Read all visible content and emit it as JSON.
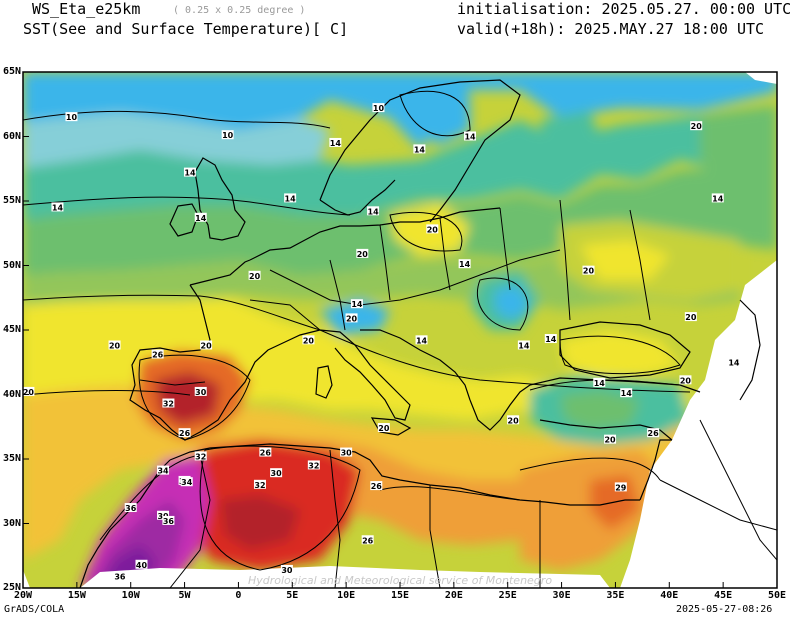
{
  "header": {
    "model": "WS_Eta_e25km",
    "resolution": "( 0.25 x 0.25 degree )",
    "variable": "SST(See and Surface Temperature)[ C]",
    "initialisation": "initialisation: 2025.05.27. 00:00 UTC",
    "valid": "valid(+18h): 2025.MAY.27 18:00 UTC"
  },
  "footer": {
    "software": "GrADS/COLA",
    "timestamp": "2025-05-27-08:26",
    "watermark": "Hydrological and Meteorological service of Montenegro"
  },
  "map": {
    "lat_ticks": [
      "65N",
      "60N",
      "55N",
      "50N",
      "45N",
      "40N",
      "35N",
      "30N",
      "25N"
    ],
    "lon_ticks": [
      "20W",
      "15W",
      "10W",
      "5W",
      "0",
      "5E",
      "10E",
      "15E",
      "20E",
      "25E",
      "30E",
      "35E",
      "40E",
      "45E",
      "50E"
    ],
    "contour_labels": [
      {
        "text": "10",
        "lon": -15.5,
        "lat": 61.5
      },
      {
        "text": "10",
        "lon": -1.0,
        "lat": 60.1
      },
      {
        "text": "10",
        "lon": 13.0,
        "lat": 62.2
      },
      {
        "text": "14",
        "lon": -16.8,
        "lat": 54.5
      },
      {
        "text": "14",
        "lon": -4.5,
        "lat": 57.2
      },
      {
        "text": "14",
        "lon": -3.5,
        "lat": 53.7
      },
      {
        "text": "14",
        "lon": 4.8,
        "lat": 55.2
      },
      {
        "text": "14",
        "lon": 9.0,
        "lat": 59.5
      },
      {
        "text": "14",
        "lon": 16.8,
        "lat": 59.0
      },
      {
        "text": "14",
        "lon": 21.5,
        "lat": 60.0
      },
      {
        "text": "14",
        "lon": 12.5,
        "lat": 54.2
      },
      {
        "text": "14",
        "lon": 21.0,
        "lat": 50.1
      },
      {
        "text": "14",
        "lon": 11.0,
        "lat": 47.0
      },
      {
        "text": "14",
        "lon": 17.0,
        "lat": 44.2
      },
      {
        "text": "14",
        "lon": 26.5,
        "lat": 43.8
      },
      {
        "text": "14",
        "lon": 29.0,
        "lat": 44.3
      },
      {
        "text": "14",
        "lon": 33.5,
        "lat": 40.9
      },
      {
        "text": "14",
        "lon": 36.0,
        "lat": 40.1
      },
      {
        "text": "14",
        "lon": 44.5,
        "lat": 55.2
      },
      {
        "text": "14",
        "lon": 46.0,
        "lat": 42.5
      },
      {
        "text": "20",
        "lon": 42.5,
        "lat": 60.8
      },
      {
        "text": "20",
        "lon": 18.0,
        "lat": 52.8
      },
      {
        "text": "20",
        "lon": 11.5,
        "lat": 50.9
      },
      {
        "text": "20",
        "lon": 32.5,
        "lat": 49.6
      },
      {
        "text": "20",
        "lon": 42.0,
        "lat": 46.0
      },
      {
        "text": "20",
        "lon": 41.5,
        "lat": 41.1
      },
      {
        "text": "20",
        "lon": 1.5,
        "lat": 49.2
      },
      {
        "text": "20",
        "lon": 10.5,
        "lat": 45.9
      },
      {
        "text": "20",
        "lon": 6.5,
        "lat": 44.2
      },
      {
        "text": "20",
        "lon": -11.5,
        "lat": 43.8
      },
      {
        "text": "20",
        "lon": -3.0,
        "lat": 43.8
      },
      {
        "text": "20",
        "lon": -19.5,
        "lat": 40.2
      },
      {
        "text": "20",
        "lon": 13.5,
        "lat": 37.4
      },
      {
        "text": "20",
        "lon": 25.5,
        "lat": 38.0
      },
      {
        "text": "20",
        "lon": 34.5,
        "lat": 36.5
      },
      {
        "text": "26",
        "lon": -7.5,
        "lat": 43.1
      },
      {
        "text": "26",
        "lon": 38.5,
        "lat": 37.0
      },
      {
        "text": "26",
        "lon": 2.5,
        "lat": 35.5
      },
      {
        "text": "26",
        "lon": 12.8,
        "lat": 32.9
      },
      {
        "text": "26",
        "lon": 12.0,
        "lat": 28.7
      },
      {
        "text": "26",
        "lon": -5.0,
        "lat": 37.0
      },
      {
        "text": "29",
        "lon": 35.5,
        "lat": 32.8
      },
      {
        "text": "30",
        "lon": -3.5,
        "lat": 40.2
      },
      {
        "text": "30",
        "lon": 10.0,
        "lat": 35.5
      },
      {
        "text": "30",
        "lon": 3.5,
        "lat": 33.9
      },
      {
        "text": "30",
        "lon": -7.0,
        "lat": 30.6
      },
      {
        "text": "30",
        "lon": 4.5,
        "lat": 26.4
      },
      {
        "text": "32",
        "lon": -6.5,
        "lat": 39.3
      },
      {
        "text": "32",
        "lon": -3.5,
        "lat": 35.2
      },
      {
        "text": "32",
        "lon": 7.0,
        "lat": 34.5
      },
      {
        "text": "32",
        "lon": 2.0,
        "lat": 33.0
      },
      {
        "text": "32",
        "lon": -5.0,
        "lat": 33.3
      },
      {
        "text": "34",
        "lon": -4.8,
        "lat": 33.2
      },
      {
        "text": "34",
        "lon": -7.0,
        "lat": 34.1
      },
      {
        "text": "36",
        "lon": -10.0,
        "lat": 31.2
      },
      {
        "text": "36",
        "lon": -6.5,
        "lat": 30.2
      },
      {
        "text": "36",
        "lon": -11.0,
        "lat": 25.9
      },
      {
        "text": "40",
        "lon": -9.0,
        "lat": 26.8
      }
    ]
  },
  "colors": {
    "cold_blue": "#3bb5ea",
    "light_blue": "#86cfd8",
    "teal": "#4bbf9f",
    "green": "#6dbf6e",
    "light_green": "#93c65a",
    "yellow_green": "#c6d23a",
    "yellow": "#f0e52e",
    "light_orange": "#f2c238",
    "orange": "#ef9f37",
    "dark_orange": "#e56a27",
    "red": "#da2b22",
    "dark_red": "#b3242b",
    "magenta": "#c62db5",
    "purple": "#9e2aa3",
    "violet": "#7d1f9c"
  }
}
